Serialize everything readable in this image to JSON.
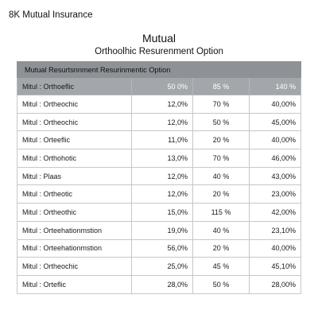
{
  "header": {
    "brand": "8K Mutual Insurance",
    "title": "Mutual",
    "subtitle": "Orthoolhic Resurenment Option"
  },
  "table": {
    "band": "Mutual Resurtsnnment Resurinmentic Option",
    "head": [
      "Mitul : Orthoeflic",
      "50 0%",
      "85 %",
      "140 %"
    ],
    "rows": [
      [
        "Mitul : Ortheochic",
        "12,0%",
        "70 %",
        "40,00%"
      ],
      [
        "Mitul : Ortheochic",
        "12,0%",
        "50 %",
        "45,00%"
      ],
      [
        "Mitul : Orteeflic",
        "11,0%",
        "20 %",
        "40,00%"
      ],
      [
        "Mitul : Orthohotic",
        "13,0%",
        "70 %",
        "46,00%"
      ],
      [
        "Mitul : Plaas",
        "12,0%",
        "40 %",
        "43,00%"
      ],
      [
        "Mitul : Ortheotic",
        "12,0%",
        "20 %",
        "23,00%"
      ],
      [
        "Mitul : Ortheothic",
        "15,0%",
        "115 %",
        "42,00%"
      ],
      [
        "Mitul : Orteehationmstion",
        "19,0%",
        "40 %",
        "23,10%"
      ],
      [
        "Mitul : Orteehationmstion",
        "56,0%",
        "20 %",
        "40,00%"
      ],
      [
        "Mitul : Ortheochic",
        "25,0%",
        "45 %",
        "45,10%"
      ],
      [
        "Mitul : Orteflic",
        "28,0%",
        "50 %",
        "28,00%"
      ]
    ]
  }
}
